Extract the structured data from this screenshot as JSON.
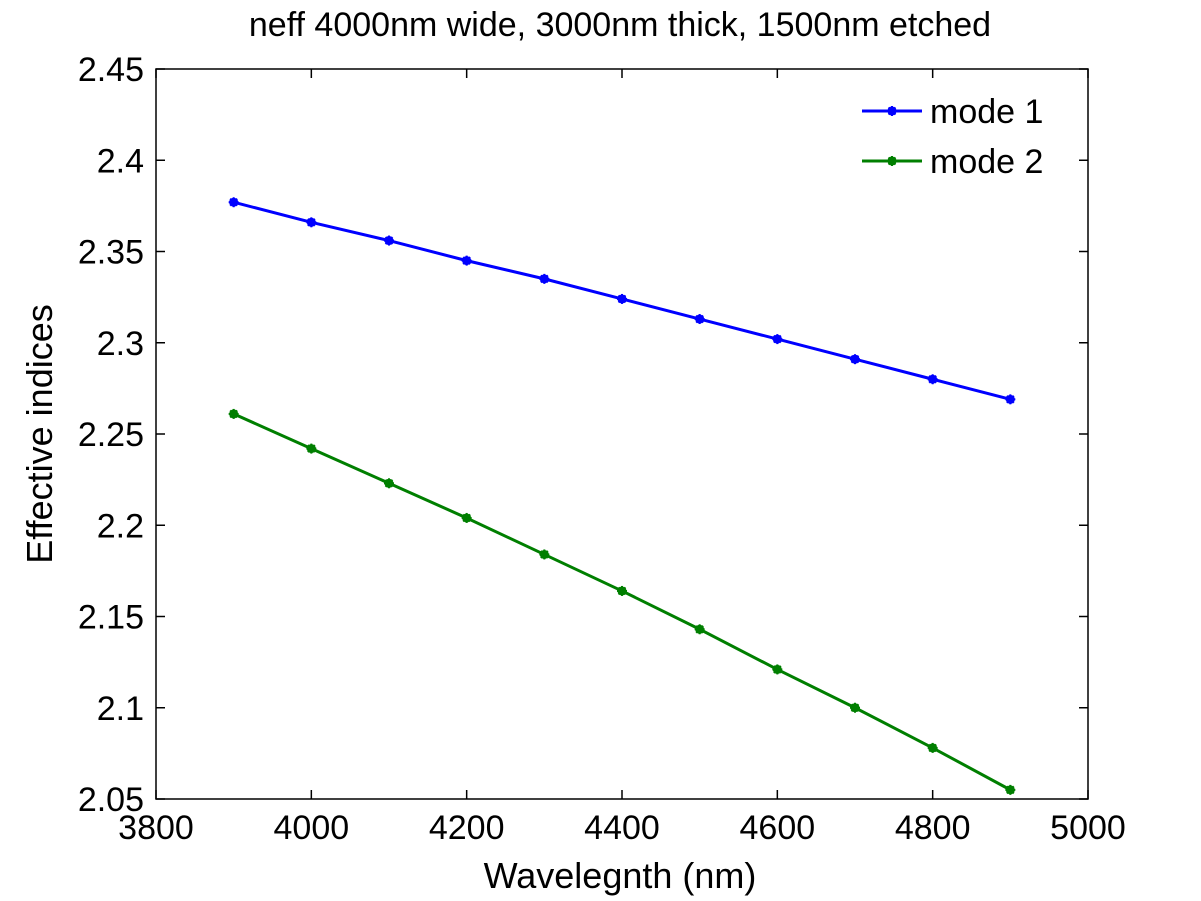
{
  "chart_data": {
    "type": "line",
    "title": "neff  4000nm wide, 3000nm thick, 1500nm etched",
    "xlabel": "Wavelegnth (nm)",
    "ylabel": "Effective indices",
    "xlim": [
      3800,
      5000
    ],
    "ylim": [
      2.05,
      2.45
    ],
    "xticks": [
      3800,
      4000,
      4200,
      4400,
      4600,
      4800,
      5000
    ],
    "yticks": [
      2.05,
      2.1,
      2.15,
      2.2,
      2.25,
      2.3,
      2.35,
      2.4,
      2.45
    ],
    "xtick_labels": [
      "3800",
      "4000",
      "4200",
      "4400",
      "4600",
      "4800",
      "5000"
    ],
    "ytick_labels": [
      "2.05",
      "2.1",
      "2.15",
      "2.2",
      "2.25",
      "2.3",
      "2.35",
      "2.4",
      "2.45"
    ],
    "grid": false,
    "legend_position": "top-right",
    "x": [
      3900,
      4000,
      4100,
      4200,
      4300,
      4400,
      4500,
      4600,
      4700,
      4800,
      4900
    ],
    "series": [
      {
        "name": "mode 1",
        "color": "#0000ff",
        "marker": "asterisk-dot",
        "values": [
          2.377,
          2.366,
          2.356,
          2.345,
          2.335,
          2.324,
          2.313,
          2.302,
          2.291,
          2.28,
          2.269
        ]
      },
      {
        "name": "mode 2",
        "color": "#007f00",
        "marker": "asterisk-dot",
        "values": [
          2.261,
          2.242,
          2.223,
          2.204,
          2.184,
          2.164,
          2.143,
          2.121,
          2.1,
          2.078,
          2.055
        ]
      }
    ]
  }
}
